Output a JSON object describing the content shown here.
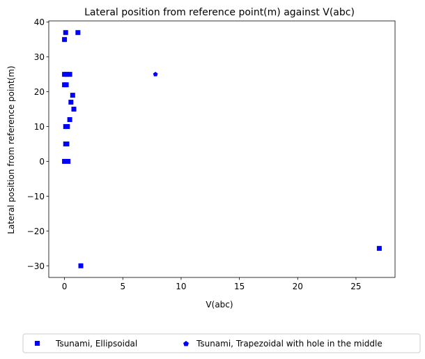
{
  "chart_data": {
    "type": "scatter",
    "title": "Lateral position from reference point(m) against V(abc)",
    "xlabel": "V(abc)",
    "ylabel": "Lateral position from reference point(m)",
    "xlim": [
      -1.35,
      28.35
    ],
    "ylim": [
      -33.35,
      40.35
    ],
    "xticks": [
      0,
      5,
      10,
      15,
      20,
      25
    ],
    "yticks": [
      -30,
      -20,
      -10,
      0,
      10,
      20,
      30,
      40
    ],
    "tick_labels_x": [
      "0",
      "5",
      "10",
      "15",
      "20",
      "25"
    ],
    "tick_labels_y": [
      "−30",
      "−20",
      "−10",
      "0",
      "10",
      "20",
      "30",
      "40"
    ],
    "grid": false,
    "legend_position": "bottom-center, below chart",
    "series": [
      {
        "name": "Tsunami, Ellipsoidal",
        "marker": "square",
        "color": "#0000ff",
        "points": [
          {
            "x": 0.1,
            "y": 37
          },
          {
            "x": 1.15,
            "y": 37
          },
          {
            "x": 0.0,
            "y": 35
          },
          {
            "x": 0.0,
            "y": 25
          },
          {
            "x": 0.2,
            "y": 25
          },
          {
            "x": 0.45,
            "y": 25
          },
          {
            "x": 0.0,
            "y": 22
          },
          {
            "x": 0.15,
            "y": 22
          },
          {
            "x": 0.7,
            "y": 19
          },
          {
            "x": 0.55,
            "y": 17
          },
          {
            "x": 0.8,
            "y": 15
          },
          {
            "x": 0.45,
            "y": 12
          },
          {
            "x": 0.1,
            "y": 10
          },
          {
            "x": 0.25,
            "y": 10
          },
          {
            "x": 0.1,
            "y": 5
          },
          {
            "x": 0.2,
            "y": 5
          },
          {
            "x": 0.0,
            "y": 0
          },
          {
            "x": 0.15,
            "y": 0
          },
          {
            "x": 0.3,
            "y": 0
          },
          {
            "x": 1.4,
            "y": -30
          },
          {
            "x": 27.0,
            "y": -25
          }
        ]
      },
      {
        "name": "Tsunami, Trapezoidal with hole in the middle",
        "marker": "pentagon",
        "color": "#0000ff",
        "points": [
          {
            "x": 7.8,
            "y": 25
          }
        ]
      }
    ]
  }
}
